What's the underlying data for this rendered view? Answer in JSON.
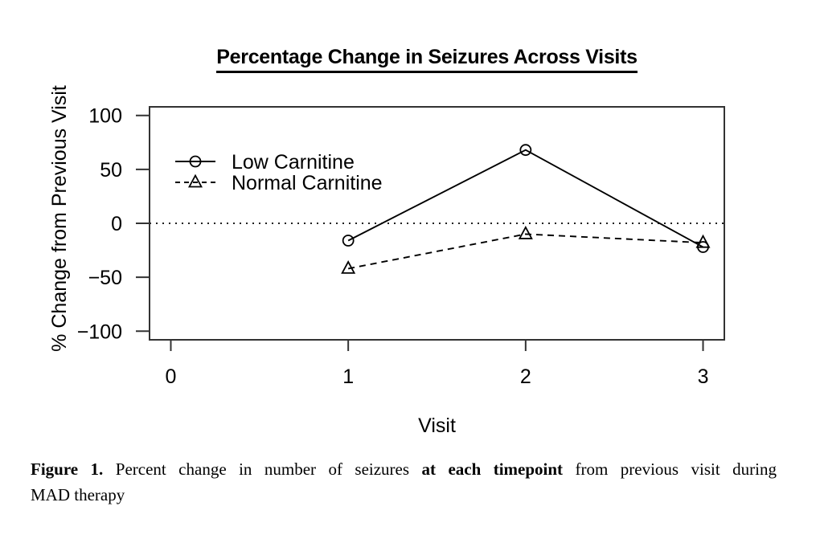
{
  "figure": {
    "title": "Percentage Change in Seizures Across Visits"
  },
  "chart_data": {
    "type": "line",
    "title": "Percentage Change in Seizures Across Visits",
    "xlabel": "Visit",
    "ylabel": "% Change from Previous Visit",
    "x": [
      1,
      2,
      3
    ],
    "series": [
      {
        "name": "Low Carnitine",
        "values": [
          -16,
          68,
          -22
        ],
        "line_style": "solid",
        "marker": "circle"
      },
      {
        "name": "Normal Carnitine",
        "values": [
          -42,
          -10,
          -18
        ],
        "line_style": "dashed",
        "marker": "triangle"
      }
    ],
    "xticks": [
      0,
      1,
      2,
      3
    ],
    "yticks": [
      100,
      50,
      0,
      -50,
      -100
    ],
    "xlim": [
      -0.12,
      3.12
    ],
    "ylim": [
      -108,
      108
    ],
    "grid": false,
    "reference_line": {
      "y": 0,
      "style": "dotted"
    },
    "legend": {
      "position": "top-left-inside",
      "entries": [
        "Low Carnitine",
        "Normal Carnitine"
      ]
    },
    "colors": {
      "foreground": "#000000",
      "background": "#ffffff",
      "box": "#333333"
    }
  },
  "caption": {
    "lines": [
      [
        {
          "text": "Figure 1.",
          "bold": true
        },
        {
          "text": " Percent change in number of seizures ",
          "bold": false
        },
        {
          "text": "at each timepoint",
          "bold": true
        },
        {
          "text": " from previous visit during",
          "bold": false
        }
      ],
      [
        {
          "text": "MAD therapy",
          "bold": false
        }
      ]
    ]
  }
}
